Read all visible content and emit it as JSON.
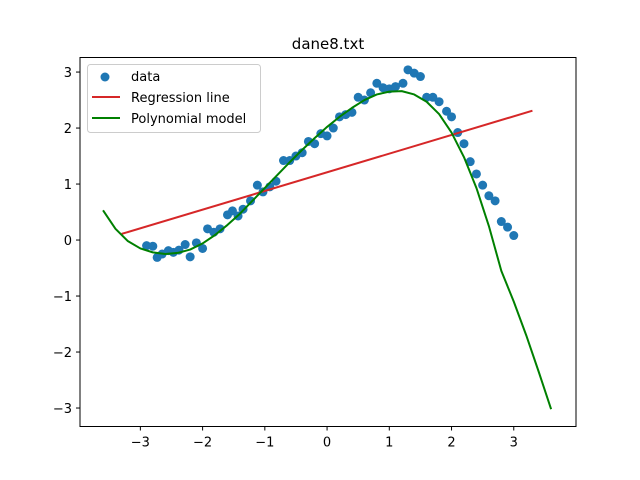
{
  "chart_data": {
    "type": "scatter",
    "title": "dane8.txt",
    "xlabel": "",
    "ylabel": "",
    "xlim": [
      -3.97,
      4.0
    ],
    "ylim": [
      -3.33,
      3.26
    ],
    "xticks": [
      -3,
      -2,
      -1,
      0,
      1,
      2,
      3
    ],
    "yticks": [
      -3,
      -2,
      -1,
      0,
      1,
      2,
      3
    ],
    "grid": false,
    "legend_position": "top-left",
    "series": [
      {
        "name": "data",
        "kind": "scatter",
        "color": "#1f77b4",
        "points": [
          [
            -2.9,
            -0.1
          ],
          [
            -2.8,
            -0.11
          ],
          [
            -2.73,
            -0.31
          ],
          [
            -2.65,
            -0.25
          ],
          [
            -2.55,
            -0.19
          ],
          [
            -2.47,
            -0.22
          ],
          [
            -2.38,
            -0.18
          ],
          [
            -2.28,
            -0.08
          ],
          [
            -2.2,
            -0.3
          ],
          [
            -2.1,
            -0.05
          ],
          [
            -2.0,
            -0.15
          ],
          [
            -1.92,
            0.2
          ],
          [
            -1.82,
            0.14
          ],
          [
            -1.72,
            0.2
          ],
          [
            -1.6,
            0.45
          ],
          [
            -1.52,
            0.52
          ],
          [
            -1.43,
            0.43
          ],
          [
            -1.35,
            0.55
          ],
          [
            -1.23,
            0.7
          ],
          [
            -1.12,
            0.98
          ],
          [
            -1.03,
            0.86
          ],
          [
            -0.92,
            0.95
          ],
          [
            -0.82,
            1.05
          ],
          [
            -0.7,
            1.42
          ],
          [
            -0.6,
            1.42
          ],
          [
            -0.5,
            1.5
          ],
          [
            -0.4,
            1.56
          ],
          [
            -0.3,
            1.76
          ],
          [
            -0.2,
            1.72
          ],
          [
            -0.1,
            1.9
          ],
          [
            0.0,
            1.86
          ],
          [
            0.1,
            2.0
          ],
          [
            0.2,
            2.2
          ],
          [
            0.3,
            2.24
          ],
          [
            0.4,
            2.28
          ],
          [
            0.5,
            2.55
          ],
          [
            0.6,
            2.5
          ],
          [
            0.7,
            2.63
          ],
          [
            0.8,
            2.8
          ],
          [
            0.9,
            2.72
          ],
          [
            1.0,
            2.7
          ],
          [
            1.1,
            2.74
          ],
          [
            1.22,
            2.8
          ],
          [
            1.3,
            3.04
          ],
          [
            1.4,
            2.98
          ],
          [
            1.5,
            2.92
          ],
          [
            1.6,
            2.55
          ],
          [
            1.7,
            2.55
          ],
          [
            1.8,
            2.47
          ],
          [
            1.92,
            2.3
          ],
          [
            2.0,
            2.2
          ],
          [
            2.1,
            1.92
          ],
          [
            2.2,
            1.72
          ],
          [
            2.3,
            1.4
          ],
          [
            2.4,
            1.18
          ],
          [
            2.5,
            0.98
          ],
          [
            2.6,
            0.79
          ],
          [
            2.7,
            0.7
          ],
          [
            2.8,
            0.33
          ],
          [
            2.9,
            0.23
          ],
          [
            3.0,
            0.08
          ]
        ]
      },
      {
        "name": "Regression line",
        "kind": "line",
        "color": "#d62728",
        "points": [
          [
            -3.3,
            0.11
          ],
          [
            3.3,
            2.31
          ]
        ]
      },
      {
        "name": "Polynomial model",
        "kind": "line",
        "color": "#008000",
        "points": [
          [
            -3.6,
            0.53
          ],
          [
            -3.4,
            0.2
          ],
          [
            -3.2,
            -0.02
          ],
          [
            -3.0,
            -0.15
          ],
          [
            -2.8,
            -0.22
          ],
          [
            -2.6,
            -0.25
          ],
          [
            -2.4,
            -0.23
          ],
          [
            -2.2,
            -0.17
          ],
          [
            -2.0,
            -0.06
          ],
          [
            -1.8,
            0.09
          ],
          [
            -1.6,
            0.27
          ],
          [
            -1.4,
            0.47
          ],
          [
            -1.2,
            0.7
          ],
          [
            -1.0,
            0.93
          ],
          [
            -0.8,
            1.16
          ],
          [
            -0.6,
            1.39
          ],
          [
            -0.4,
            1.61
          ],
          [
            -0.2,
            1.82
          ],
          [
            0.0,
            2.02
          ],
          [
            0.2,
            2.2
          ],
          [
            0.4,
            2.36
          ],
          [
            0.6,
            2.5
          ],
          [
            0.8,
            2.6
          ],
          [
            1.0,
            2.65
          ],
          [
            1.2,
            2.66
          ],
          [
            1.4,
            2.6
          ],
          [
            1.6,
            2.47
          ],
          [
            1.8,
            2.25
          ],
          [
            2.0,
            1.92
          ],
          [
            2.2,
            1.48
          ],
          [
            2.4,
            0.93
          ],
          [
            2.6,
            0.25
          ],
          [
            2.8,
            -0.55
          ],
          [
            3.0,
            -1.1
          ],
          [
            3.2,
            -1.7
          ],
          [
            3.4,
            -2.35
          ],
          [
            3.6,
            -3.02
          ]
        ]
      }
    ]
  }
}
